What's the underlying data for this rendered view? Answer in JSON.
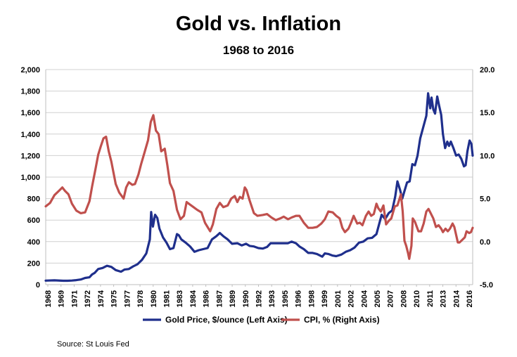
{
  "chart_data": {
    "type": "line",
    "title": "Gold vs. Inflation",
    "subtitle": "1968 to 2016",
    "source": "Source: St Louis Fed",
    "left_axis": {
      "ylim": [
        0,
        2000
      ],
      "ticks": [
        "0",
        "200",
        "400",
        "600",
        "800",
        "1,000",
        "1,200",
        "1,400",
        "1,600",
        "1,800",
        "2,000"
      ],
      "tick_values": [
        0,
        200,
        400,
        600,
        800,
        1000,
        1200,
        1400,
        1600,
        1800,
        2000
      ]
    },
    "right_axis": {
      "ylim": [
        -5,
        20
      ],
      "ticks": [
        "-5.0",
        "0.0",
        "5.0",
        "10.0",
        "15.0",
        "20.0"
      ],
      "tick_values": [
        -5,
        0,
        5,
        10,
        15,
        20
      ]
    },
    "xlim": [
      1968,
      2016.8
    ],
    "x_ticks": [
      "1968",
      "1969",
      "1971",
      "1972",
      "1974",
      "1975",
      "1977",
      "1978",
      "1980",
      "1981",
      "1983",
      "1984",
      "1986",
      "1987",
      "1989",
      "1990",
      "1992",
      "1993",
      "1995",
      "1996",
      "1998",
      "1999",
      "2001",
      "2002",
      "2004",
      "2005",
      "2007",
      "2008",
      "2010",
      "2011",
      "2013",
      "2014",
      "2016"
    ],
    "grid": "horizontal",
    "legend_position": "bottom",
    "series": [
      {
        "name": "Gold Price, $/ounce (Left Axis)",
        "axis": "left",
        "color": "#1f2f8c",
        "points": [
          [
            1968.0,
            37
          ],
          [
            1969.0,
            40
          ],
          [
            1970.0,
            36
          ],
          [
            1970.5,
            36
          ],
          [
            1971.0,
            38
          ],
          [
            1971.5,
            42
          ],
          [
            1972.0,
            48
          ],
          [
            1972.5,
            62
          ],
          [
            1973.0,
            68
          ],
          [
            1973.3,
            95
          ],
          [
            1973.6,
            110
          ],
          [
            1974.0,
            145
          ],
          [
            1974.5,
            155
          ],
          [
            1975.0,
            175
          ],
          [
            1975.5,
            165
          ],
          [
            1976.0,
            135
          ],
          [
            1976.6,
            120
          ],
          [
            1977.0,
            140
          ],
          [
            1977.5,
            145
          ],
          [
            1978.0,
            170
          ],
          [
            1978.5,
            190
          ],
          [
            1979.0,
            230
          ],
          [
            1979.5,
            290
          ],
          [
            1979.9,
            420
          ],
          [
            1980.05,
            675
          ],
          [
            1980.25,
            540
          ],
          [
            1980.5,
            650
          ],
          [
            1980.75,
            620
          ],
          [
            1981.0,
            520
          ],
          [
            1981.4,
            440
          ],
          [
            1981.8,
            390
          ],
          [
            1982.2,
            330
          ],
          [
            1982.6,
            340
          ],
          [
            1983.0,
            470
          ],
          [
            1983.2,
            460
          ],
          [
            1983.5,
            420
          ],
          [
            1984.0,
            390
          ],
          [
            1984.5,
            355
          ],
          [
            1985.0,
            305
          ],
          [
            1985.5,
            320
          ],
          [
            1986.0,
            330
          ],
          [
            1986.5,
            340
          ],
          [
            1987.0,
            420
          ],
          [
            1987.5,
            450
          ],
          [
            1987.9,
            480
          ],
          [
            1988.3,
            450
          ],
          [
            1988.8,
            420
          ],
          [
            1989.3,
            380
          ],
          [
            1989.9,
            385
          ],
          [
            1990.4,
            365
          ],
          [
            1990.9,
            380
          ],
          [
            1991.3,
            360
          ],
          [
            1991.8,
            355
          ],
          [
            1992.3,
            340
          ],
          [
            1992.8,
            335
          ],
          [
            1993.3,
            350
          ],
          [
            1993.7,
            385
          ],
          [
            1994.2,
            385
          ],
          [
            1994.7,
            385
          ],
          [
            1995.2,
            385
          ],
          [
            1995.7,
            385
          ],
          [
            1996.1,
            400
          ],
          [
            1996.6,
            385
          ],
          [
            1997.0,
            355
          ],
          [
            1997.5,
            330
          ],
          [
            1998.0,
            295
          ],
          [
            1998.5,
            295
          ],
          [
            1999.0,
            285
          ],
          [
            1999.6,
            260
          ],
          [
            1999.9,
            290
          ],
          [
            2000.3,
            285
          ],
          [
            2000.8,
            270
          ],
          [
            2001.2,
            265
          ],
          [
            2001.8,
            280
          ],
          [
            2002.3,
            305
          ],
          [
            2002.8,
            320
          ],
          [
            2003.3,
            345
          ],
          [
            2003.8,
            390
          ],
          [
            2004.3,
            400
          ],
          [
            2004.8,
            430
          ],
          [
            2005.3,
            435
          ],
          [
            2005.8,
            470
          ],
          [
            2006.1,
            560
          ],
          [
            2006.4,
            650
          ],
          [
            2006.8,
            610
          ],
          [
            2007.2,
            665
          ],
          [
            2007.6,
            690
          ],
          [
            2007.95,
            820
          ],
          [
            2008.2,
            960
          ],
          [
            2008.5,
            880
          ],
          [
            2008.75,
            800
          ],
          [
            2009.0,
            870
          ],
          [
            2009.3,
            950
          ],
          [
            2009.6,
            960
          ],
          [
            2009.9,
            1120
          ],
          [
            2010.2,
            1110
          ],
          [
            2010.5,
            1200
          ],
          [
            2010.8,
            1360
          ],
          [
            2011.0,
            1420
          ],
          [
            2011.3,
            1510
          ],
          [
            2011.5,
            1570
          ],
          [
            2011.7,
            1780
          ],
          [
            2011.95,
            1640
          ],
          [
            2012.1,
            1740
          ],
          [
            2012.3,
            1630
          ],
          [
            2012.5,
            1590
          ],
          [
            2012.75,
            1750
          ],
          [
            2012.95,
            1670
          ],
          [
            2013.2,
            1580
          ],
          [
            2013.4,
            1400
          ],
          [
            2013.65,
            1270
          ],
          [
            2013.9,
            1330
          ],
          [
            2014.1,
            1290
          ],
          [
            2014.3,
            1330
          ],
          [
            2014.6,
            1270
          ],
          [
            2014.9,
            1200
          ],
          [
            2015.2,
            1210
          ],
          [
            2015.5,
            1170
          ],
          [
            2015.8,
            1100
          ],
          [
            2016.0,
            1110
          ],
          [
            2016.2,
            1240
          ],
          [
            2016.45,
            1340
          ],
          [
            2016.65,
            1310
          ],
          [
            2016.8,
            1200
          ]
        ]
      },
      {
        "name": "CPI, % (Right Axis)",
        "axis": "right",
        "color": "#c0504d",
        "points": [
          [
            1968.0,
            4.1
          ],
          [
            1968.5,
            4.5
          ],
          [
            1969.0,
            5.4
          ],
          [
            1969.5,
            5.9
          ],
          [
            1969.9,
            6.3
          ],
          [
            1970.2,
            5.9
          ],
          [
            1970.6,
            5.5
          ],
          [
            1971.0,
            4.4
          ],
          [
            1971.5,
            3.6
          ],
          [
            1972.0,
            3.3
          ],
          [
            1972.5,
            3.4
          ],
          [
            1973.0,
            4.7
          ],
          [
            1973.3,
            6.4
          ],
          [
            1973.7,
            8.5
          ],
          [
            1974.0,
            10.1
          ],
          [
            1974.3,
            11.1
          ],
          [
            1974.6,
            12.0
          ],
          [
            1974.9,
            12.2
          ],
          [
            1975.2,
            10.5
          ],
          [
            1975.5,
            9.3
          ],
          [
            1976.0,
            6.7
          ],
          [
            1976.4,
            5.7
          ],
          [
            1976.9,
            5.0
          ],
          [
            1977.2,
            6.3
          ],
          [
            1977.5,
            6.9
          ],
          [
            1977.9,
            6.6
          ],
          [
            1978.2,
            6.7
          ],
          [
            1978.6,
            7.8
          ],
          [
            1978.9,
            9.0
          ],
          [
            1979.3,
            10.4
          ],
          [
            1979.7,
            11.8
          ],
          [
            1980.0,
            13.9
          ],
          [
            1980.3,
            14.7
          ],
          [
            1980.6,
            12.9
          ],
          [
            1980.9,
            12.5
          ],
          [
            1981.2,
            10.5
          ],
          [
            1981.6,
            10.8
          ],
          [
            1981.9,
            8.9
          ],
          [
            1982.2,
            6.8
          ],
          [
            1982.6,
            5.9
          ],
          [
            1983.0,
            3.7
          ],
          [
            1983.4,
            2.6
          ],
          [
            1983.8,
            3.0
          ],
          [
            1984.1,
            4.6
          ],
          [
            1984.5,
            4.3
          ],
          [
            1984.9,
            4.0
          ],
          [
            1985.3,
            3.7
          ],
          [
            1985.8,
            3.4
          ],
          [
            1986.2,
            2.2
          ],
          [
            1986.5,
            1.7
          ],
          [
            1986.8,
            1.2
          ],
          [
            1987.1,
            2.0
          ],
          [
            1987.5,
            3.8
          ],
          [
            1987.9,
            4.5
          ],
          [
            1988.3,
            4.0
          ],
          [
            1988.8,
            4.2
          ],
          [
            1989.2,
            5.0
          ],
          [
            1989.6,
            5.3
          ],
          [
            1989.9,
            4.6
          ],
          [
            1990.2,
            5.2
          ],
          [
            1990.5,
            5.0
          ],
          [
            1990.75,
            6.3
          ],
          [
            1990.95,
            6.0
          ],
          [
            1991.3,
            4.8
          ],
          [
            1991.8,
            3.3
          ],
          [
            1992.2,
            3.0
          ],
          [
            1992.8,
            3.1
          ],
          [
            1993.3,
            3.2
          ],
          [
            1993.8,
            2.8
          ],
          [
            1994.3,
            2.5
          ],
          [
            1994.8,
            2.7
          ],
          [
            1995.2,
            2.9
          ],
          [
            1995.7,
            2.6
          ],
          [
            1996.1,
            2.8
          ],
          [
            1996.6,
            3.0
          ],
          [
            1997.0,
            3.0
          ],
          [
            1997.5,
            2.2
          ],
          [
            1998.0,
            1.6
          ],
          [
            1998.5,
            1.6
          ],
          [
            1999.0,
            1.7
          ],
          [
            1999.5,
            2.1
          ],
          [
            1999.9,
            2.6
          ],
          [
            2000.3,
            3.5
          ],
          [
            2000.8,
            3.4
          ],
          [
            2001.2,
            3.0
          ],
          [
            2001.6,
            2.7
          ],
          [
            2001.9,
            1.6
          ],
          [
            2002.2,
            1.1
          ],
          [
            2002.6,
            1.5
          ],
          [
            2002.9,
            2.2
          ],
          [
            2003.2,
            3.0
          ],
          [
            2003.6,
            2.1
          ],
          [
            2003.9,
            2.2
          ],
          [
            2004.2,
            1.9
          ],
          [
            2004.6,
            3.0
          ],
          [
            2004.9,
            3.5
          ],
          [
            2005.2,
            3.0
          ],
          [
            2005.5,
            3.2
          ],
          [
            2005.8,
            4.4
          ],
          [
            2006.0,
            3.9
          ],
          [
            2006.3,
            3.5
          ],
          [
            2006.6,
            4.2
          ],
          [
            2006.9,
            2.0
          ],
          [
            2007.2,
            2.4
          ],
          [
            2007.5,
            2.7
          ],
          [
            2007.9,
            4.1
          ],
          [
            2008.2,
            4.2
          ],
          [
            2008.6,
            5.5
          ],
          [
            2008.8,
            3.5
          ],
          [
            2009.0,
            0.1
          ],
          [
            2009.2,
            -0.5
          ],
          [
            2009.4,
            -1.3
          ],
          [
            2009.55,
            -2.0
          ],
          [
            2009.8,
            -0.5
          ],
          [
            2009.95,
            2.7
          ],
          [
            2010.2,
            2.3
          ],
          [
            2010.6,
            1.2
          ],
          [
            2010.9,
            1.2
          ],
          [
            2011.2,
            2.1
          ],
          [
            2011.5,
            3.5
          ],
          [
            2011.75,
            3.8
          ],
          [
            2011.95,
            3.4
          ],
          [
            2012.3,
            2.7
          ],
          [
            2012.6,
            1.7
          ],
          [
            2012.9,
            1.9
          ],
          [
            2013.2,
            1.5
          ],
          [
            2013.4,
            1.1
          ],
          [
            2013.7,
            1.5
          ],
          [
            2013.95,
            1.2
          ],
          [
            2014.2,
            1.5
          ],
          [
            2014.5,
            2.1
          ],
          [
            2014.7,
            1.7
          ],
          [
            2014.9,
            0.8
          ],
          [
            2015.1,
            -0.1
          ],
          [
            2015.3,
            -0.1
          ],
          [
            2015.6,
            0.2
          ],
          [
            2015.9,
            0.5
          ],
          [
            2016.1,
            1.2
          ],
          [
            2016.4,
            1.0
          ],
          [
            2016.6,
            1.1
          ],
          [
            2016.8,
            1.6
          ]
        ]
      }
    ]
  }
}
